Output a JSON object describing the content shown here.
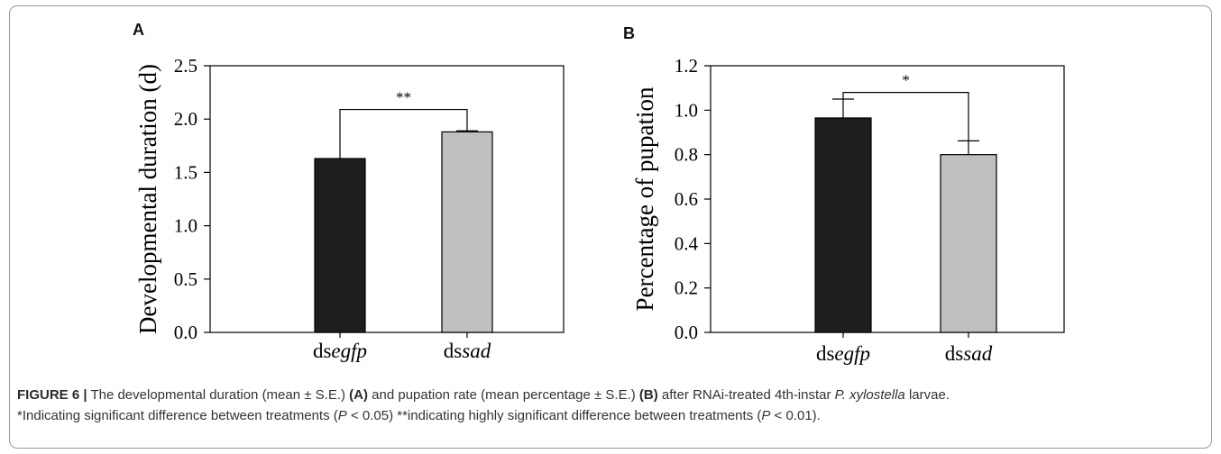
{
  "chart_data": [
    {
      "type": "bar",
      "panel": "A",
      "categories": [
        {
          "prefix": "ds",
          "italic": "egfp"
        },
        {
          "prefix": "ds",
          "italic": "sad"
        }
      ],
      "values": [
        1.63,
        1.88
      ],
      "errors": [
        0.0,
        0.01
      ],
      "colors": [
        "#1e1e1e",
        "#c0c0c0"
      ],
      "ylabel": "Developmental duration (d)",
      "ylim": [
        0,
        2.5
      ],
      "yticks": [
        "0.0",
        "0.5",
        "1.0",
        "1.5",
        "2.0",
        "2.5"
      ],
      "significance": {
        "label": "**",
        "bracket_y": 2.09
      },
      "grid": false
    },
    {
      "type": "bar",
      "panel": "B",
      "categories": [
        {
          "prefix": "ds",
          "italic": "egfp"
        },
        {
          "prefix": "ds",
          "italic": "sad"
        }
      ],
      "values": [
        0.965,
        0.8
      ],
      "errors": [
        0.085,
        0.062
      ],
      "colors": [
        "#1e1e1e",
        "#c0c0c0"
      ],
      "ylabel": "Percentage of pupation",
      "ylim": [
        0,
        1.2
      ],
      "yticks": [
        "0.0",
        "0.2",
        "0.4",
        "0.6",
        "0.8",
        "1.0",
        "1.2"
      ],
      "significance": {
        "label": "*",
        "bracket_y": 1.08
      },
      "grid": false
    }
  ],
  "caption": {
    "label": "FIGURE 6 |",
    "t1": " The developmental duration (mean ± S.E.) ",
    "a": "(A)",
    "t2": " and pupation rate (mean percentage ± S.E.) ",
    "b": "(B)",
    "t3": " after RNAi-treated 4th-instar ",
    "species": "P. xylostella",
    "t4": " larvae.",
    "t5": "*Indicating significant difference between treatments (",
    "p1": "P",
    "t6": " < 0.05) **indicating highly significant difference between treatments (",
    "p2": "P",
    "t7": " < 0.01)."
  }
}
